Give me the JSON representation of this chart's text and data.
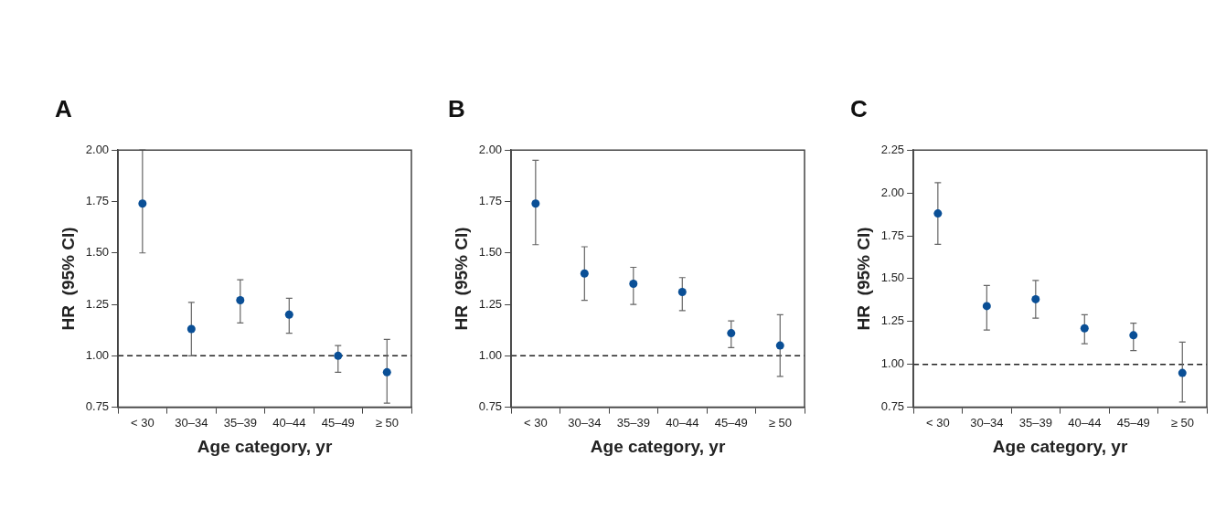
{
  "chart_data": [
    {
      "type": "scatter",
      "title": "A",
      "xlabel": "Age category, yr",
      "ylabel": "HR  (95% CI)",
      "categories": [
        "< 30",
        "30–34",
        "35–39",
        "40–44",
        "45–49",
        "≥ 50"
      ],
      "marker": "circle",
      "ylim": [
        0.75,
        2.0
      ],
      "yticks": [
        {
          "value": 0.75,
          "label": "0.75"
        },
        {
          "value": 1.0,
          "label": "1.00"
        },
        {
          "value": 1.25,
          "label": "1.25"
        },
        {
          "value": 1.5,
          "label": "1.50"
        },
        {
          "value": 1.75,
          "label": "1.75"
        },
        {
          "value": 2.0,
          "label": "2.00"
        }
      ],
      "ref_lines": [
        {
          "axis": "y",
          "value": 1.0,
          "line_style": "dashed"
        }
      ],
      "series": [
        {
          "color": "#0a4f96",
          "values": [
            1.74,
            1.13,
            1.27,
            1.2,
            1.0,
            0.92
          ],
          "errors": [
            [
              1.5,
              2.0
            ],
            [
              1.0,
              1.26
            ],
            [
              1.16,
              1.37
            ],
            [
              1.11,
              1.28
            ],
            [
              0.92,
              1.05
            ],
            [
              0.77,
              1.08
            ]
          ]
        }
      ]
    },
    {
      "type": "scatter",
      "title": "B",
      "xlabel": "Age category, yr",
      "ylabel": "HR  (95% CI)",
      "categories": [
        "< 30",
        "30–34",
        "35–39",
        "40–44",
        "45–49",
        "≥ 50"
      ],
      "marker": "circle",
      "ylim": [
        0.75,
        2.0
      ],
      "yticks": [
        {
          "value": 0.75,
          "label": "0.75"
        },
        {
          "value": 1.0,
          "label": "1.00"
        },
        {
          "value": 1.25,
          "label": "1.25"
        },
        {
          "value": 1.5,
          "label": "1.50"
        },
        {
          "value": 1.75,
          "label": "1.75"
        },
        {
          "value": 2.0,
          "label": "2.00"
        }
      ],
      "ref_lines": [
        {
          "axis": "y",
          "value": 1.0,
          "line_style": "dashed"
        }
      ],
      "series": [
        {
          "color": "#0a4f96",
          "values": [
            1.74,
            1.4,
            1.35,
            1.31,
            1.11,
            1.05
          ],
          "errors": [
            [
              1.54,
              1.95
            ],
            [
              1.27,
              1.53
            ],
            [
              1.25,
              1.43
            ],
            [
              1.22,
              1.38
            ],
            [
              1.04,
              1.17
            ],
            [
              0.9,
              1.2
            ]
          ]
        }
      ]
    },
    {
      "type": "scatter",
      "title": "C",
      "xlabel": "Age category, yr",
      "ylabel": "HR  (95% CI)",
      "categories": [
        "< 30",
        "30–34",
        "35–39",
        "40–44",
        "45–49",
        "≥ 50"
      ],
      "marker": "circle",
      "ylim": [
        0.75,
        2.25
      ],
      "yticks": [
        {
          "value": 0.75,
          "label": "0.75"
        },
        {
          "value": 1.0,
          "label": "1.00"
        },
        {
          "value": 1.25,
          "label": "1.25"
        },
        {
          "value": 1.5,
          "label": "1.50"
        },
        {
          "value": 1.75,
          "label": "1.75"
        },
        {
          "value": 2.0,
          "label": "2.00"
        },
        {
          "value": 2.25,
          "label": "2.25"
        }
      ],
      "ref_lines": [
        {
          "axis": "y",
          "value": 1.0,
          "line_style": "dashed"
        }
      ],
      "series": [
        {
          "color": "#0a4f96",
          "values": [
            1.88,
            1.34,
            1.38,
            1.21,
            1.17,
            0.95
          ],
          "errors": [
            [
              1.7,
              2.06
            ],
            [
              1.2,
              1.46
            ],
            [
              1.27,
              1.49
            ],
            [
              1.12,
              1.29
            ],
            [
              1.08,
              1.24
            ],
            [
              0.78,
              1.13
            ]
          ]
        }
      ]
    }
  ]
}
